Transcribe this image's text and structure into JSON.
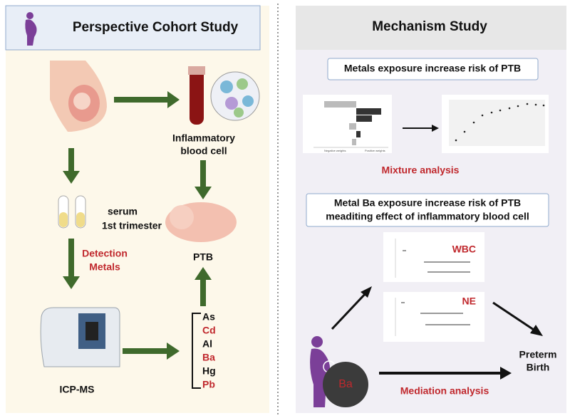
{
  "left": {
    "title": "Perspective Cohort Study",
    "inflammatory": [
      "Inflammatory",
      "blood cell"
    ],
    "serum": [
      "serum",
      "1st trimester"
    ],
    "detection": [
      "Detection",
      "Metals"
    ],
    "ptb": "PTB",
    "instrument": "ICP-MS",
    "metals": [
      "As",
      "Cd",
      "Al",
      "Ba",
      "Hg",
      "Pb"
    ]
  },
  "right": {
    "title": "Mechanism Study",
    "box1": "Metals exposure increase risk of PTB",
    "mixture_axis": [
      "Negative weights",
      "Positive weights"
    ],
    "mixture": "Mixture analysis",
    "box2": [
      "Metal Ba exposure increase risk of PTB",
      "meaditing effect of inflammatory blood cell"
    ],
    "forest": [
      "WBC",
      "NE"
    ],
    "outcome": [
      "Preterm",
      "Birth"
    ],
    "exposure": "Ba",
    "mediation": "Mediation analysis"
  }
}
